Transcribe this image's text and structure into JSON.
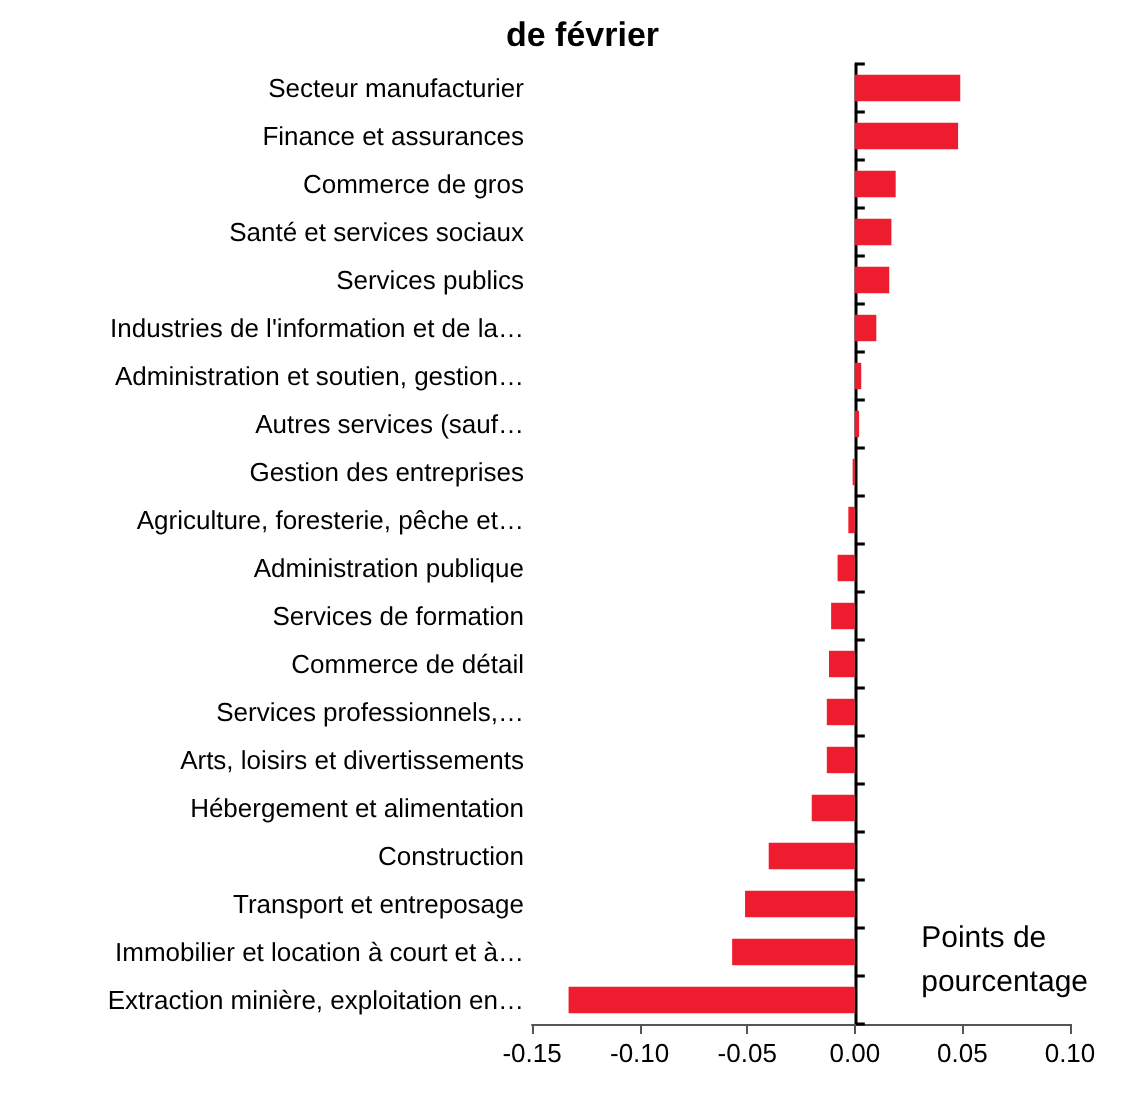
{
  "chart_data": {
    "type": "bar",
    "orientation": "horizontal",
    "title": "de février",
    "xlabel": "Points de\npourcentage",
    "categories": [
      "Secteur manufacturier",
      "Finance et assurances",
      "Commerce de gros",
      "Santé et services sociaux",
      "Services publics",
      "Industries de l'information et de la…",
      "Administration et soutien, gestion…",
      "Autres services (sauf…",
      "Gestion des entreprises",
      "Agriculture, foresterie, pêche et…",
      "Administration publique",
      "Services de formation",
      "Commerce de détail",
      "Services professionnels,…",
      "Arts, loisirs et divertissements",
      "Hébergement et alimentation",
      "Construction",
      "Transport et entreposage",
      "Immobilier et location à court et à…",
      "Extraction minière, exploitation en…"
    ],
    "values": [
      0.049,
      0.048,
      0.019,
      0.017,
      0.016,
      0.01,
      0.003,
      0.002,
      -0.001,
      -0.003,
      -0.008,
      -0.011,
      -0.012,
      -0.013,
      -0.013,
      -0.02,
      -0.04,
      -0.051,
      -0.057,
      -0.133
    ],
    "color": "#ed1c2e",
    "xlim": [
      -0.15,
      0.1
    ],
    "xticks": [
      {
        "value": -0.15,
        "label": "-0.15"
      },
      {
        "value": -0.1,
        "label": "-0.10"
      },
      {
        "value": -0.05,
        "label": "-0.05"
      },
      {
        "value": 0,
        "label": "0.00"
      },
      {
        "value": 0.05,
        "label": "0.05"
      },
      {
        "value": 0.1,
        "label": "0.10"
      }
    ]
  }
}
